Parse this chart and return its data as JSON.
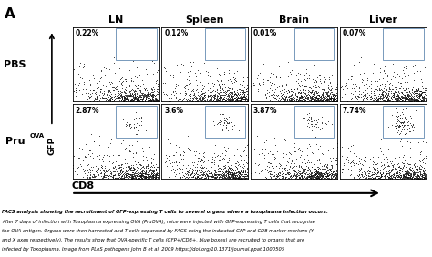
{
  "title_letter": "A",
  "col_headers": [
    "LN",
    "Spleen",
    "Brain",
    "Liver"
  ],
  "row_header_labels": [
    "PBS",
    "Pru"
  ],
  "row_header_sups": [
    "",
    "OVA"
  ],
  "percentages": [
    [
      "0.22%",
      "0.12%",
      "0.01%",
      "0.07%"
    ],
    [
      "2.87%",
      "3.6%",
      "3.87%",
      "7.74%"
    ]
  ],
  "y_axis_label": "GFP",
  "x_axis_label": "CD8",
  "caption_bold": "FACS analysis showing the recruitment of GFP-expressing T cells to several organs where a toxoplasma infection occurs.",
  "caption_lines": [
    "After 7 days of infection with Toxoplasma expressing OVA (PruOVA), mice were injected with GFP-expressing T cells that recognise",
    "the OVA antigen. Organs were then harvested and T cells separated by FACS using the indicated GFP and CD8 marker markers (Y",
    "and X axes respectively). The results show that OVA-specific T cells (GFP+/CD8+, blue boxes) are recruited to organs that are",
    "infected by Toxoplasma. Image from PLoS pathogens John B et al, 2009 https://doi.org/10.1371/journal.ppat.1000505"
  ],
  "bg_color": "#ffffff",
  "dot_color": "#111111",
  "box_color": "#7799bb"
}
